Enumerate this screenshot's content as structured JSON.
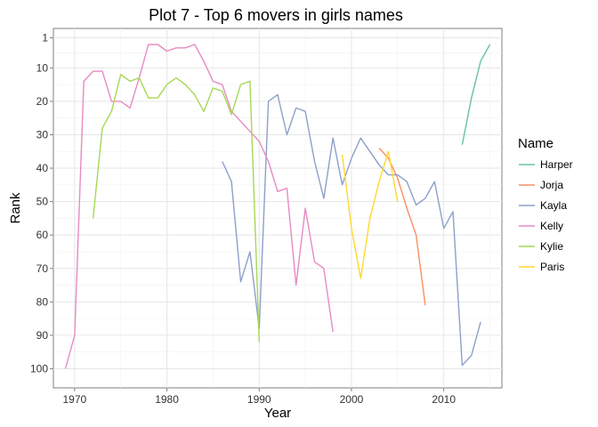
{
  "chart_data": {
    "type": "line",
    "title": "Plot 7 - Top 6 movers in girls names",
    "xlabel": "Year",
    "ylabel": "Rank",
    "xlim": [
      1967.7,
      2016.3
    ],
    "ylim": [
      1,
      100
    ],
    "y_reversed": true,
    "x_ticks": [
      1970,
      1980,
      1990,
      2000,
      2010
    ],
    "y_ticks": [
      1,
      10,
      20,
      30,
      40,
      50,
      60,
      70,
      80,
      90,
      100
    ],
    "grid": true,
    "legend_title": "Name",
    "legend_position": "right",
    "series": [
      {
        "name": "Harper",
        "color": "#66c2a5",
        "x": [
          2012,
          2013,
          2014,
          2015
        ],
        "y": [
          33,
          19,
          8,
          3
        ]
      },
      {
        "name": "Jorja",
        "color": "#fc8d62",
        "x": [
          2003,
          2004,
          2005,
          2006,
          2007,
          2008
        ],
        "y": [
          34,
          37,
          43,
          52,
          60,
          81
        ]
      },
      {
        "name": "Kayla",
        "color": "#8da0cb",
        "x": [
          1986,
          1987,
          1988,
          1989,
          1990,
          1991,
          1992,
          1993,
          1994,
          1995,
          1996,
          1997,
          1998,
          1999,
          2000,
          2001,
          2002,
          2003,
          2004,
          2005,
          2006,
          2007,
          2008,
          2009,
          2010,
          2011,
          2012,
          2013,
          2014
        ],
        "y": [
          38,
          44,
          74,
          65,
          88,
          20,
          18,
          30,
          22,
          23,
          38,
          49,
          31,
          45,
          37,
          31,
          35,
          39,
          42,
          42,
          44,
          51,
          49,
          44,
          58,
          53,
          99,
          96,
          86
        ]
      },
      {
        "name": "Kelly",
        "color": "#e78ac3",
        "x": [
          1969,
          1970,
          1971,
          1972,
          1973,
          1974,
          1975,
          1976,
          1977,
          1978,
          1979,
          1980,
          1981,
          1982,
          1983,
          1984,
          1985,
          1986,
          1987,
          1988,
          1989,
          1990,
          1991,
          1992,
          1993,
          1994,
          1995,
          1996,
          1997,
          1998
        ],
        "y": [
          100,
          90,
          14,
          11,
          11,
          20,
          20,
          22,
          13,
          3,
          3,
          5,
          4,
          4,
          3,
          8,
          14,
          15,
          23,
          26,
          29,
          32,
          38,
          47,
          46,
          75,
          52,
          68,
          70,
          89
        ]
      },
      {
        "name": "Kylie",
        "color": "#a6d854",
        "x": [
          1972,
          1973,
          1974,
          1975,
          1976,
          1977,
          1978,
          1979,
          1980,
          1981,
          1982,
          1983,
          1984,
          1985,
          1986,
          1987,
          1988,
          1989,
          1990
        ],
        "y": [
          55,
          28,
          23,
          12,
          14,
          13,
          19,
          19,
          15,
          13,
          15,
          18,
          23,
          16,
          17,
          24,
          15,
          14,
          92
        ]
      },
      {
        "name": "Paris",
        "color": "#ffd92f",
        "x": [
          1999,
          2000,
          2001,
          2002,
          2003,
          2004,
          2005
        ],
        "y": [
          36,
          58,
          73,
          55,
          44,
          35,
          50
        ]
      }
    ]
  }
}
